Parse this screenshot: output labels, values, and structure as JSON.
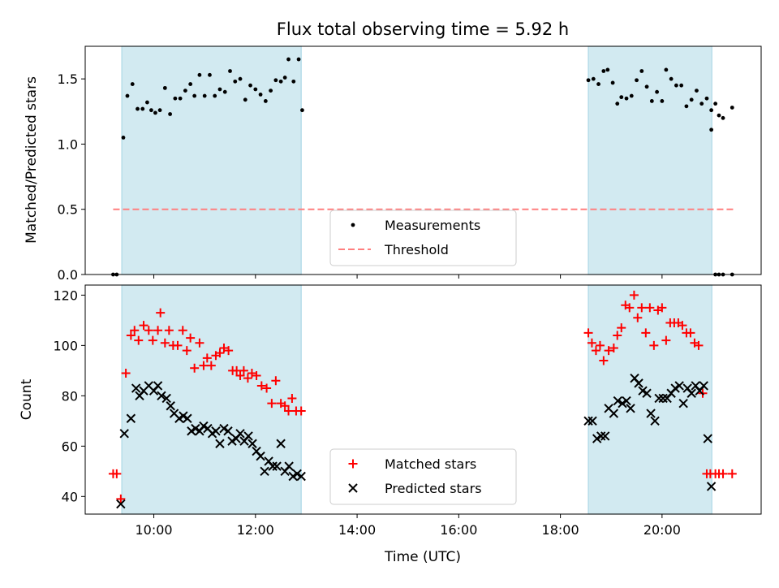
{
  "title": "Flux total observing time = 5.92 h",
  "colors": {
    "shade": "#add8e6",
    "matched": "#ff0000",
    "predicted": "#000000",
    "measurement": "#000000",
    "threshold": "#ff7f7f"
  },
  "chart_data": [
    {
      "type": "scatter",
      "ylabel": "Matched/Predicted stars",
      "ylim": [
        0,
        1.75
      ],
      "xlim": [
        8.65,
        21.95
      ],
      "yticks": [
        0.0,
        0.5,
        1.0,
        1.5
      ],
      "ytick_labels": [
        "0.0",
        "0.5",
        "1.0",
        "1.5"
      ],
      "shaded_intervals": [
        [
          9.37,
          12.9
        ],
        [
          18.55,
          20.98
        ]
      ],
      "threshold": {
        "name": "Threshold",
        "value": 0.5,
        "x_range": [
          9.2,
          21.4
        ]
      },
      "legend": {
        "placement": "lower-center",
        "entries": [
          "Measurements",
          "Threshold"
        ]
      },
      "series": [
        {
          "name": "Measurements",
          "x": [
            9.2,
            9.27,
            9.4,
            9.48,
            9.58,
            9.68,
            9.78,
            9.87,
            9.95,
            10.03,
            10.12,
            10.22,
            10.32,
            10.42,
            10.52,
            10.62,
            10.72,
            10.8,
            10.9,
            11.0,
            11.1,
            11.2,
            11.3,
            11.4,
            11.5,
            11.6,
            11.7,
            11.8,
            11.9,
            12.0,
            12.1,
            12.2,
            12.3,
            12.4,
            12.5,
            12.58,
            12.65,
            12.75,
            12.85,
            12.92,
            18.55,
            18.65,
            18.75,
            18.85,
            18.93,
            19.03,
            19.12,
            19.2,
            19.3,
            19.4,
            19.5,
            19.6,
            19.7,
            19.8,
            19.9,
            20.0,
            20.08,
            20.18,
            20.28,
            20.38,
            20.48,
            20.58,
            20.68,
            20.78,
            20.88,
            20.97,
            21.05,
            21.12,
            21.2,
            21.38
          ],
          "y": [
            0.0,
            0.0,
            1.05,
            1.37,
            1.46,
            1.27,
            1.27,
            1.32,
            1.26,
            1.24,
            1.26,
            1.43,
            1.23,
            1.35,
            1.35,
            1.41,
            1.46,
            1.37,
            1.53,
            1.37,
            1.53,
            1.37,
            1.42,
            1.4,
            1.56,
            1.48,
            1.5,
            1.34,
            1.45,
            1.42,
            1.38,
            1.33,
            1.41,
            1.49,
            1.48,
            1.51,
            1.65,
            1.48,
            1.65,
            1.26,
            1.49,
            1.5,
            1.46,
            1.56,
            1.57,
            1.47,
            1.31,
            1.36,
            1.35,
            1.37,
            1.49,
            1.56,
            1.44,
            1.33,
            1.4,
            1.33,
            1.57,
            1.5,
            1.45,
            1.45,
            1.29,
            1.34,
            1.41,
            1.31,
            1.35,
            1.26,
            1.31,
            1.22,
            1.2,
            1.28
          ],
          "x_tail": [
            20.97,
            21.05,
            21.12,
            21.2,
            21.38
          ],
          "y_tail": [
            1.11,
            0.0,
            0.0,
            0.0,
            0.0
          ]
        }
      ]
    },
    {
      "type": "scatter",
      "xlabel": "Time (UTC)",
      "ylabel": "Count",
      "ylim": [
        33,
        124
      ],
      "xlim": [
        8.65,
        21.95
      ],
      "xticks": [
        10,
        12,
        14,
        16,
        18,
        20
      ],
      "xtick_labels": [
        "10:00",
        "12:00",
        "14:00",
        "16:00",
        "18:00",
        "20:00"
      ],
      "yticks": [
        40,
        60,
        80,
        100,
        120
      ],
      "ytick_labels": [
        "40",
        "60",
        "80",
        "100",
        "120"
      ],
      "shaded_intervals": [
        [
          9.37,
          12.9
        ],
        [
          18.55,
          20.98
        ]
      ],
      "legend": {
        "placement": "lower-center",
        "entries": [
          "Matched stars",
          "Predicted stars"
        ]
      },
      "series": [
        {
          "name": "Matched stars",
          "marker": "plus",
          "x": [
            9.2,
            9.27,
            9.35,
            9.45,
            9.55,
            9.62,
            9.7,
            9.8,
            9.9,
            9.98,
            10.08,
            10.13,
            10.22,
            10.3,
            10.38,
            10.47,
            10.57,
            10.65,
            10.72,
            10.8,
            10.9,
            10.98,
            11.05,
            11.13,
            11.22,
            11.3,
            11.38,
            11.47,
            11.55,
            11.63,
            11.7,
            11.77,
            11.85,
            11.93,
            12.02,
            12.12,
            12.22,
            12.32,
            12.4,
            12.5,
            12.58,
            12.65,
            12.72,
            12.8,
            12.9,
            18.55,
            18.62,
            18.7,
            18.78,
            18.85,
            18.95,
            19.05,
            19.12,
            19.2,
            19.28,
            19.36,
            19.45,
            19.52,
            19.6,
            19.68,
            19.76,
            19.84,
            19.92,
            20.0,
            20.08,
            20.16,
            20.24,
            20.32,
            20.4,
            20.48,
            20.56,
            20.64,
            20.72,
            20.8,
            20.88,
            20.95,
            21.05,
            21.12,
            21.2,
            21.38
          ],
          "y": [
            49,
            49,
            39,
            89,
            104,
            106,
            102,
            108,
            106,
            102,
            106,
            113,
            101,
            106,
            100,
            100,
            106,
            98,
            103,
            91,
            101,
            92,
            95,
            92,
            96,
            97,
            99,
            98,
            90,
            90,
            88,
            90,
            87,
            89,
            88,
            84,
            83,
            77,
            86,
            77,
            76,
            74,
            79,
            74,
            74,
            105,
            101,
            98,
            100,
            94,
            98,
            99,
            104,
            107,
            116,
            115,
            120,
            111,
            115,
            105,
            115,
            100,
            114,
            115,
            102,
            109,
            109,
            109,
            108,
            105,
            105,
            101,
            100,
            81,
            49,
            49,
            49,
            49,
            49,
            49
          ]
        },
        {
          "name": "Predicted stars",
          "marker": "x",
          "x": [
            9.35,
            9.42,
            9.55,
            9.65,
            9.72,
            9.8,
            9.9,
            10.0,
            10.08,
            10.15,
            10.25,
            10.33,
            10.4,
            10.5,
            10.58,
            10.66,
            10.74,
            10.82,
            10.9,
            10.98,
            11.06,
            11.15,
            11.22,
            11.3,
            11.38,
            11.46,
            11.54,
            11.62,
            11.7,
            11.78,
            11.86,
            11.94,
            12.02,
            12.1,
            12.18,
            12.26,
            12.34,
            12.42,
            12.5,
            12.58,
            12.66,
            12.74,
            12.82,
            12.9,
            18.55,
            18.63,
            18.72,
            18.8,
            18.88,
            18.95,
            19.05,
            19.13,
            19.22,
            19.3,
            19.38,
            19.46,
            19.54,
            19.62,
            19.7,
            19.78,
            19.86,
            19.94,
            20.02,
            20.1,
            20.18,
            20.26,
            20.34,
            20.42,
            20.5,
            20.58,
            20.66,
            20.74,
            20.82,
            20.9,
            20.97
          ],
          "y": [
            37,
            65,
            71,
            83,
            80,
            82,
            84,
            82,
            84,
            80,
            79,
            76,
            73,
            71,
            72,
            71,
            66,
            67,
            66,
            68,
            67,
            65,
            66,
            61,
            67,
            66,
            62,
            63,
            65,
            62,
            64,
            61,
            58,
            56,
            50,
            54,
            52,
            52,
            61,
            50,
            52,
            48,
            49,
            48,
            70,
            70,
            63,
            64,
            64,
            75,
            73,
            78,
            77,
            78,
            75,
            87,
            85,
            82,
            81,
            73,
            70,
            79,
            79,
            79,
            81,
            83,
            84,
            77,
            83,
            81,
            84,
            82,
            84,
            63,
            44
          ]
        }
      ]
    }
  ]
}
